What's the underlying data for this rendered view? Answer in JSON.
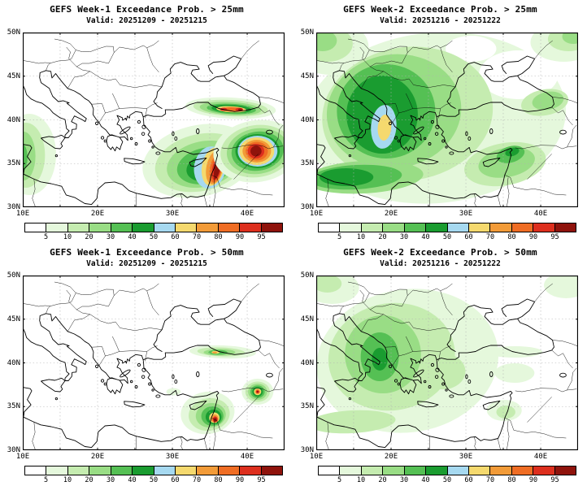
{
  "panels": [
    {
      "title": "GEFS Week-1 Exceedance Prob. > 25mm",
      "valid": "Valid: 20251209 - 20251215"
    },
    {
      "title": "GEFS Week-2 Exceedance Prob. > 25mm",
      "valid": "Valid: 20251216 - 20251222"
    },
    {
      "title": "GEFS Week-1 Exceedance Prob. > 50mm",
      "valid": "Valid: 20251209 - 20251215"
    },
    {
      "title": "GEFS Week-2 Exceedance Prob. > 50mm",
      "valid": "Valid: 20251216 - 20251222"
    }
  ],
  "axes": {
    "lat_labels": [
      "50N",
      "45N",
      "40N",
      "35N",
      "30N"
    ],
    "lon_labels": [
      "10E",
      "20E",
      "30E",
      "40E"
    ]
  },
  "colorbar": {
    "labels": [
      "5",
      "10",
      "20",
      "30",
      "40",
      "50",
      "60",
      "70",
      "80",
      "90",
      "95"
    ],
    "colors": [
      "#ffffff",
      "#e5f8dc",
      "#c5ecb0",
      "#99dd85",
      "#55c054",
      "#1a9c30",
      "#a6d9f0",
      "#f5d96e",
      "#f29b38",
      "#ef6d24",
      "#dd2f1e",
      "#8f130c"
    ]
  }
}
